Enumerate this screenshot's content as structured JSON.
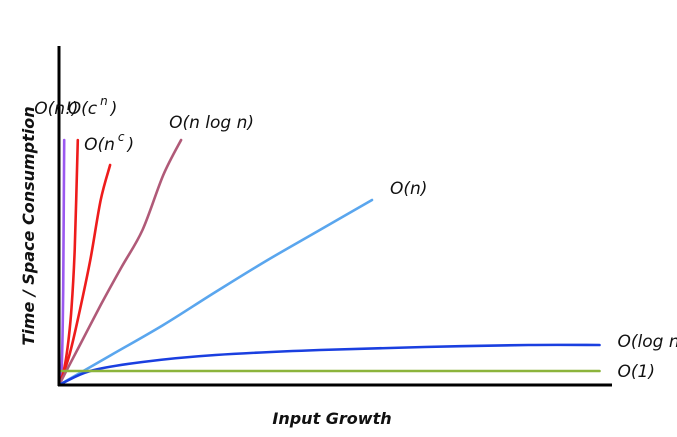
{
  "chart_data": {
    "type": "line",
    "title": "",
    "xlabel": "Input Growth",
    "ylabel": "Time / Space Consumption",
    "grid": false,
    "legend": "inline labels at line ends",
    "series": [
      {
        "name": "O(n!)",
        "label_main": "O(n!)",
        "label_sup": "",
        "label_tail": "",
        "color": "#9b59f0",
        "x": [
          0,
          1,
          2,
          3,
          4,
          5
        ],
        "values": [
          0,
          1,
          6,
          30,
          95,
          245
        ]
      },
      {
        "name": "O(c^n)",
        "label_main": "O(c",
        "label_sup": "n",
        "label_tail": ")",
        "color": "#ee1c1c",
        "x": [
          0,
          3,
          6,
          9,
          12,
          15,
          18
        ],
        "values": [
          0,
          8,
          22,
          44,
          77,
          135,
          245
        ]
      },
      {
        "name": "O(n^c)",
        "label_main": "O(n",
        "label_sup": "c",
        "label_tail": ")",
        "color": "#ee1c1c",
        "x": [
          0,
          10,
          20,
          30,
          40,
          49
        ],
        "values": [
          0,
          30,
          75,
          125,
          185,
          220
        ]
      },
      {
        "name": "O(n log n)",
        "label_main": "O(n log n)",
        "label_sup": "",
        "label_tail": "",
        "color": "#b05a78",
        "x": [
          0,
          20,
          40,
          60,
          80,
          100,
          117
        ],
        "values": [
          0,
          40,
          80,
          118,
          155,
          210,
          245
        ]
      },
      {
        "name": "O(n)",
        "label_main": "O(n)",
        "label_sup": "",
        "label_tail": "",
        "color": "#5aa6ee",
        "x": [
          0,
          50,
          100,
          150,
          200,
          250,
          300
        ],
        "values": [
          0,
          30,
          60,
          93,
          125,
          155,
          185
        ]
      },
      {
        "name": "O(log n)",
        "label_main": "O(log n)",
        "label_sup": "",
        "label_tail": "",
        "color": "#1a3fe0",
        "x": [
          0,
          30,
          80,
          150,
          250,
          350,
          450,
          518
        ],
        "values": [
          0,
          14,
          23,
          30,
          35,
          38,
          40,
          40
        ]
      },
      {
        "name": "O(1)",
        "label_main": "O(1)",
        "label_sup": "",
        "label_tail": "",
        "color": "#8cb43c",
        "x": [
          0,
          518
        ],
        "values": [
          14,
          14
        ]
      }
    ],
    "xlim": [
      0,
      530
    ],
    "ylim": [
      0,
      340
    ],
    "colors": {
      "axis": "#000000",
      "text": "#111111"
    }
  }
}
